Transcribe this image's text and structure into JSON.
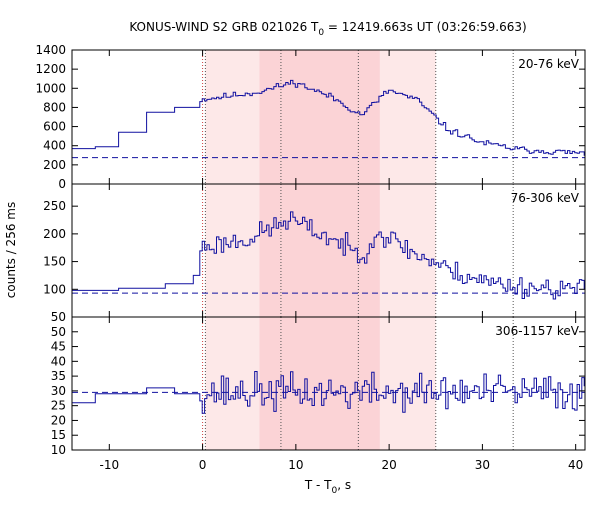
{
  "chart_data": {
    "type": "line",
    "title_main": "KONUS-WIND S2 GRB 021026 T",
    "title_sub": "0",
    "title_rest": " = 12419.663s UT (03:26:59.663)",
    "xlabel_main": "T - T",
    "xlabel_sub": "0",
    "xlabel_rest": ", s",
    "ylabel": "counts / 256 ms",
    "xlim": [
      -14,
      41
    ],
    "xticks": [
      -10,
      0,
      10,
      20,
      30,
      40
    ],
    "xtick_labels": [
      "-10",
      "0",
      "10",
      "20",
      "30",
      "40"
    ],
    "colors": {
      "line": "#1010a0",
      "shade_light": "#fde8e8",
      "shade_dark": "#fbd3d6",
      "vline": "#555555"
    },
    "shaded_intervals": [
      {
        "x0": 0.3,
        "x1": 25.0,
        "level": "light"
      },
      {
        "x0": 6.1,
        "x1": 19.0,
        "level": "dark"
      }
    ],
    "vertical_lines_dotted": [
      0.3,
      8.4,
      16.7,
      25.0,
      33.3
    ],
    "vertical_line_red": 0.0,
    "panels": [
      {
        "label": "20-76 keV",
        "ylim": [
          0,
          1400
        ],
        "yticks": [
          0,
          200,
          400,
          600,
          800,
          1000,
          1200,
          1400
        ],
        "ytick_labels": [
          "0",
          "200",
          "400",
          "600",
          "800",
          "1000",
          "1200",
          "1400"
        ],
        "background": 275,
        "pre_steps": [
          [
            -14,
            -11.5,
            370
          ],
          [
            -11.5,
            -9,
            390
          ],
          [
            -9,
            -6,
            540
          ],
          [
            -6,
            -3,
            750
          ],
          [
            -3,
            -0.3,
            800
          ]
        ],
        "segments": [
          [
            -0.3,
            6,
            880,
            960
          ],
          [
            6,
            10,
            960,
            1070
          ],
          [
            10,
            14,
            1060,
            900
          ],
          [
            14,
            17,
            900,
            720
          ],
          [
            17,
            20,
            720,
            980
          ],
          [
            20,
            23,
            980,
            880
          ],
          [
            23,
            26,
            880,
            600
          ],
          [
            26,
            30,
            580,
            430
          ],
          [
            30,
            34,
            430,
            360
          ],
          [
            34,
            41,
            360,
            320
          ]
        ],
        "noise": 28,
        "seed": 11
      },
      {
        "label": "76-306 keV",
        "ylim": [
          50,
          290
        ],
        "yticks": [
          50,
          100,
          150,
          200,
          250
        ],
        "ytick_labels": [
          "50",
          "100",
          "150",
          "200",
          "250"
        ],
        "background": 93,
        "pre_steps": [
          [
            -14,
            -9,
            98
          ],
          [
            -9,
            -4,
            102
          ],
          [
            -4,
            -1,
            110
          ],
          [
            -1,
            -0.3,
            125
          ]
        ],
        "segments": [
          [
            -0.3,
            6,
            175,
            195
          ],
          [
            6,
            10,
            200,
            230
          ],
          [
            10,
            14,
            220,
            190
          ],
          [
            14,
            17,
            190,
            160
          ],
          [
            17,
            19,
            160,
            210
          ],
          [
            19,
            22,
            200,
            175
          ],
          [
            22,
            26,
            170,
            140
          ],
          [
            26,
            30,
            135,
            118
          ],
          [
            30,
            34,
            115,
            105
          ],
          [
            34,
            41,
            105,
            100
          ]
        ],
        "noise": 16,
        "seed": 23
      },
      {
        "label": "306-1157 keV",
        "ylim": [
          10,
          55
        ],
        "yticks": [
          10,
          15,
          20,
          25,
          30,
          35,
          40,
          45,
          50
        ],
        "ytick_labels": [
          "10",
          "15",
          "20",
          "25",
          "30",
          "35",
          "40",
          "45",
          "50"
        ],
        "background": 29.5,
        "pre_steps": [
          [
            -14,
            -11.5,
            26
          ],
          [
            -11.5,
            -6,
            29
          ],
          [
            -6,
            -3,
            31
          ],
          [
            -3,
            -0.3,
            29
          ]
        ],
        "segments": [
          [
            -0.3,
            41,
            29.5,
            29.5
          ]
        ],
        "noise": 5.2,
        "seed": 37
      }
    ]
  }
}
